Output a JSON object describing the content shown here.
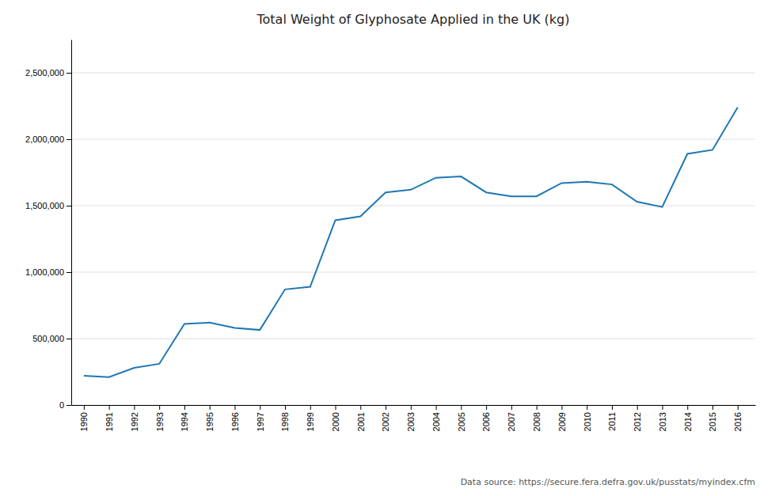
{
  "chart_data": {
    "type": "line",
    "title": "Total Weight of Glyphosate  Applied in the UK (kg)",
    "x": [
      1990,
      1991,
      1992,
      1993,
      1994,
      1995,
      1996,
      1997,
      1998,
      1999,
      2000,
      2001,
      2002,
      2003,
      2004,
      2005,
      2006,
      2007,
      2008,
      2009,
      2010,
      2011,
      2012,
      2013,
      2014,
      2015,
      2016
    ],
    "values": [
      220000,
      210000,
      280000,
      310000,
      610000,
      620000,
      580000,
      565000,
      870000,
      890000,
      1390000,
      1420000,
      1600000,
      1620000,
      1710000,
      1720000,
      1600000,
      1570000,
      1570000,
      1670000,
      1680000,
      1660000,
      1530000,
      1490000,
      1890000,
      1920000,
      2240000
    ],
    "xlim": [
      1989.5,
      2016.7
    ],
    "xticks": [
      1990,
      1991,
      1992,
      1993,
      1994,
      1995,
      1996,
      1997,
      1998,
      1999,
      2000,
      2001,
      2002,
      2003,
      2004,
      2005,
      2006,
      2007,
      2008,
      2009,
      2010,
      2011,
      2012,
      2013,
      2014,
      2015,
      2016
    ],
    "ylim": [
      0,
      2750000
    ],
    "yticks": [
      0,
      {
        "value": 500000,
        "label": "500,000"
      },
      {
        "value": 1000000,
        "label": "1,000,000"
      },
      {
        "value": 1500000,
        "label": "1,500,000"
      },
      {
        "value": 2000000,
        "label": "2,000,000"
      },
      {
        "value": 2500000,
        "label": "2,500,000"
      }
    ],
    "grid": true,
    "annotation": "Data source: https://secure.fera.defra.gov.uk/pusstats/myindex.cfm"
  }
}
